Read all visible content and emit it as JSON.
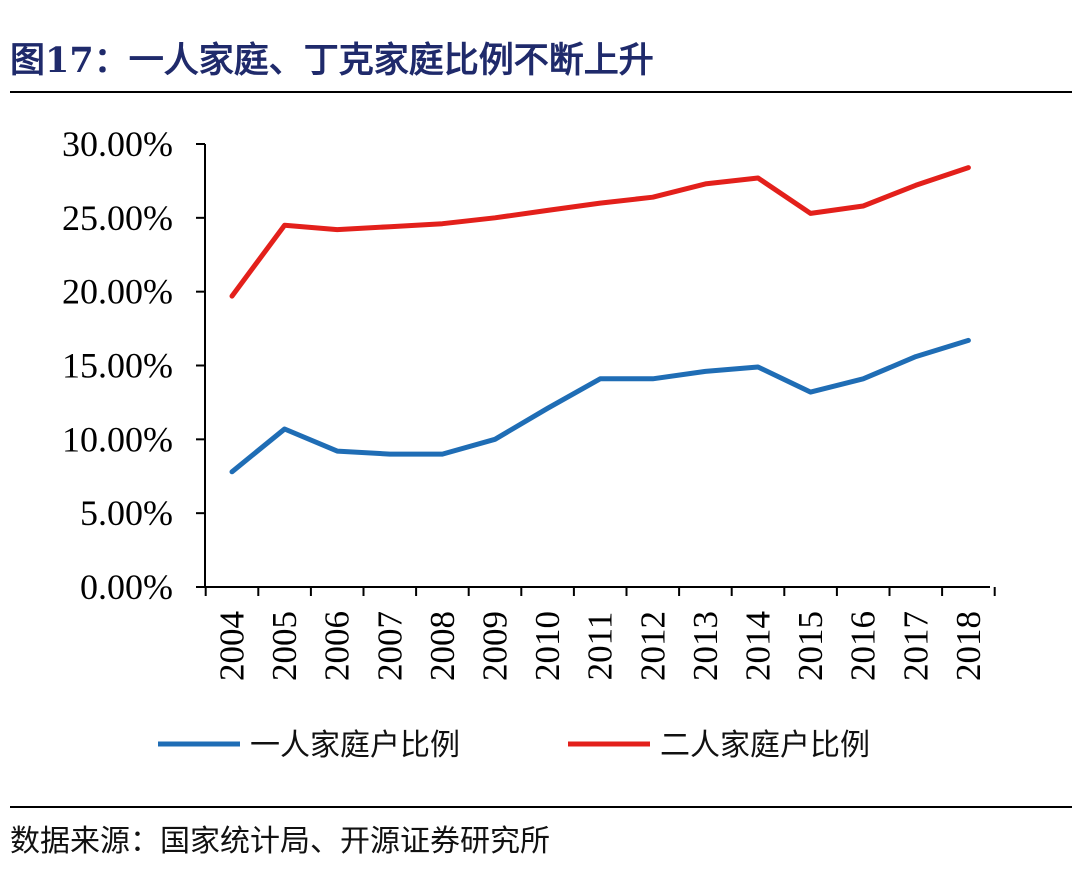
{
  "title": "图17：一人家庭、丁克家庭比例不断上升",
  "source": "数据来源：国家统计局、开源证券研究所",
  "chart_data": {
    "type": "line",
    "title": "图17：一人家庭、丁克家庭比例不断上升",
    "xlabel": "",
    "ylabel": "",
    "categories": [
      "2004",
      "2005",
      "2006",
      "2007",
      "2008",
      "2009",
      "2010",
      "2011",
      "2012",
      "2013",
      "2014",
      "2015",
      "2016",
      "2017",
      "2018"
    ],
    "ylim": [
      0,
      30
    ],
    "ytick_values": [
      0,
      5,
      10,
      15,
      20,
      25,
      30
    ],
    "ytick_labels": [
      "0.00%",
      "5.00%",
      "10.00%",
      "15.00%",
      "20.00%",
      "25.00%",
      "30.00%"
    ],
    "grid": false,
    "legend_position": "bottom",
    "series": [
      {
        "name": "一人家庭户比例",
        "color": "#1f6db5",
        "values": [
          7.8,
          10.7,
          9.2,
          9.0,
          9.0,
          10.0,
          12.1,
          14.1,
          14.1,
          14.6,
          14.9,
          13.2,
          14.1,
          15.6,
          16.7
        ]
      },
      {
        "name": "二人家庭户比例",
        "color": "#e3201b",
        "values": [
          19.7,
          24.5,
          24.2,
          24.4,
          24.6,
          25.0,
          25.5,
          26.0,
          26.4,
          27.3,
          27.7,
          25.3,
          25.8,
          27.2,
          28.4
        ]
      }
    ]
  }
}
